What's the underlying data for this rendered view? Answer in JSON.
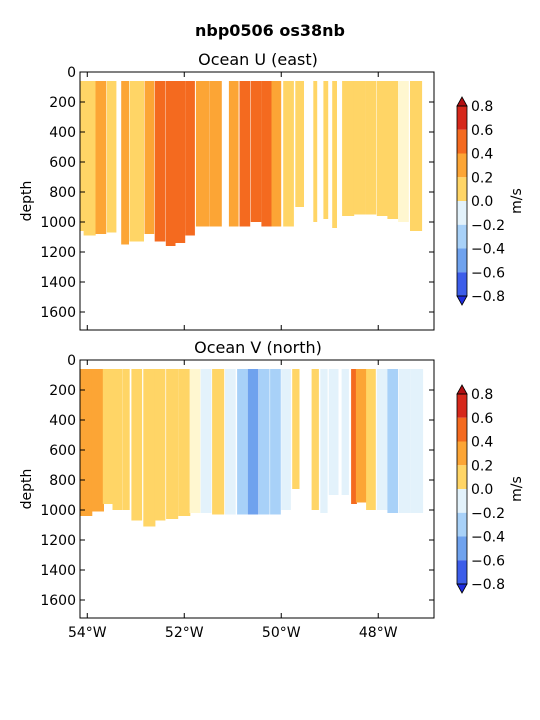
{
  "suptitle": "nbp0506 os38nb",
  "chart_data": [
    {
      "type": "heatmap",
      "title": "Ocean U (east)",
      "xlabel": "",
      "ylabel": "depth",
      "xlim": [
        -54.15,
        -46.85
      ],
      "ylim": [
        1720,
        0
      ],
      "yticks": [
        0,
        200,
        400,
        600,
        800,
        1000,
        1200,
        1400,
        1600
      ],
      "xticks": [
        -54,
        -52,
        -50,
        -48
      ],
      "xtick_labels": [
        "54°W",
        "52°W",
        "50°W",
        "48°W"
      ],
      "show_xtick_labels": false,
      "grid": false,
      "profiles": [
        {
          "lon": -54.1,
          "width": 0.12,
          "zmax": 1060,
          "value": 0.15
        },
        {
          "lon": -53.95,
          "width": 0.25,
          "zmax": 1090,
          "value": 0.1
        },
        {
          "lon": -53.72,
          "width": 0.22,
          "zmax": 1080,
          "value": 0.25
        },
        {
          "lon": -53.5,
          "width": 0.2,
          "zmax": 1070,
          "value": 0.1
        },
        {
          "lon": -53.22,
          "width": 0.16,
          "zmax": 1150,
          "value": 0.25
        },
        {
          "lon": -52.98,
          "width": 0.3,
          "zmax": 1130,
          "value": 0.2
        },
        {
          "lon": -52.72,
          "width": 0.2,
          "zmax": 1080,
          "value": 0.35
        },
        {
          "lon": -52.5,
          "width": 0.22,
          "zmax": 1130,
          "value": 0.45
        },
        {
          "lon": -52.28,
          "width": 0.2,
          "zmax": 1160,
          "value": 0.55
        },
        {
          "lon": -52.08,
          "width": 0.2,
          "zmax": 1140,
          "value": 0.6
        },
        {
          "lon": -51.88,
          "width": 0.2,
          "zmax": 1090,
          "value": 0.55
        },
        {
          "lon": -51.62,
          "width": 0.28,
          "zmax": 1030,
          "value": 0.35
        },
        {
          "lon": -51.35,
          "width": 0.25,
          "zmax": 1030,
          "value": 0.3
        },
        {
          "lon": -50.98,
          "width": 0.2,
          "zmax": 1030,
          "value": 0.4
        },
        {
          "lon": -50.75,
          "width": 0.22,
          "zmax": 1030,
          "value": 0.55
        },
        {
          "lon": -50.52,
          "width": 0.22,
          "zmax": 1000,
          "value": 0.6
        },
        {
          "lon": -50.3,
          "width": 0.22,
          "zmax": 1030,
          "value": 0.45
        },
        {
          "lon": -50.1,
          "width": 0.2,
          "zmax": 1030,
          "value": 0.25
        },
        {
          "lon": -49.85,
          "width": 0.22,
          "zmax": 1030,
          "value": 0.1
        },
        {
          "lon": -49.62,
          "width": 0.18,
          "zmax": 900,
          "value": 0.1
        },
        {
          "lon": -49.3,
          "width": 0.08,
          "zmax": 1000,
          "value": 0.05
        },
        {
          "lon": -49.08,
          "width": 0.1,
          "zmax": 980,
          "value": 0.05
        },
        {
          "lon": -48.9,
          "width": 0.1,
          "zmax": 1040,
          "value": 0.05
        },
        {
          "lon": -48.62,
          "width": 0.25,
          "zmax": 960,
          "value": 0.1
        },
        {
          "lon": -48.38,
          "width": 0.25,
          "zmax": 950,
          "value": 0.15
        },
        {
          "lon": -48.15,
          "width": 0.22,
          "zmax": 950,
          "value": 0.15
        },
        {
          "lon": -47.92,
          "width": 0.22,
          "zmax": 960,
          "value": 0.05
        },
        {
          "lon": -47.7,
          "width": 0.22,
          "zmax": 980,
          "value": 0.05
        },
        {
          "lon": -47.48,
          "width": 0.22,
          "zmax": 1000,
          "value": 0.0
        },
        {
          "lon": -47.22,
          "width": 0.25,
          "zmax": 1060,
          "value": 0.1
        }
      ],
      "colorbar": {
        "label": "m/s",
        "ticks": [
          0.8,
          0.6,
          0.4,
          0.2,
          0.0,
          -0.2,
          -0.4,
          -0.6,
          -0.8
        ],
        "tick_labels": [
          "0.8",
          "0.6",
          "0.4",
          "0.2",
          "0.0",
          "−0.2",
          "−0.4",
          "−0.6",
          "−0.8"
        ],
        "colors": [
          "#d6281b",
          "#f46a1f",
          "#fca535",
          "#ffd566",
          "#fff7d0",
          "#e3f2fb",
          "#a8d1f8",
          "#6fa2ee",
          "#3c5de9"
        ],
        "extend": "both"
      }
    },
    {
      "type": "heatmap",
      "title": "Ocean V (north)",
      "xlabel": "",
      "ylabel": "depth",
      "xlim": [
        -54.15,
        -46.85
      ],
      "ylim": [
        1720,
        0
      ],
      "yticks": [
        0,
        200,
        400,
        600,
        800,
        1000,
        1200,
        1400,
        1600
      ],
      "xticks": [
        -54,
        -52,
        -50,
        -48
      ],
      "xtick_labels": [
        "54°W",
        "52°W",
        "50°W",
        "48°W"
      ],
      "show_xtick_labels": true,
      "grid": false,
      "profiles": [
        {
          "lon": -54.02,
          "width": 0.25,
          "zmax": 1040,
          "value": 0.35
        },
        {
          "lon": -53.78,
          "width": 0.25,
          "zmax": 1010,
          "value": 0.25
        },
        {
          "lon": -53.58,
          "width": 0.2,
          "zmax": 960,
          "value": 0.2
        },
        {
          "lon": -53.38,
          "width": 0.2,
          "zmax": 1000,
          "value": 0.15
        },
        {
          "lon": -53.2,
          "width": 0.15,
          "zmax": 1000,
          "value": 0.05
        },
        {
          "lon": -52.98,
          "width": 0.22,
          "zmax": 1070,
          "value": 0.1
        },
        {
          "lon": -52.72,
          "width": 0.25,
          "zmax": 1110,
          "value": 0.05
        },
        {
          "lon": -52.5,
          "width": 0.22,
          "zmax": 1070,
          "value": 0.1
        },
        {
          "lon": -52.25,
          "width": 0.25,
          "zmax": 1060,
          "value": 0.1
        },
        {
          "lon": -52.0,
          "width": 0.25,
          "zmax": 1040,
          "value": 0.05
        },
        {
          "lon": -51.78,
          "width": 0.22,
          "zmax": 1020,
          "value": 0.0
        },
        {
          "lon": -51.55,
          "width": 0.22,
          "zmax": 1020,
          "value": -0.1
        },
        {
          "lon": -51.3,
          "width": 0.25,
          "zmax": 1030,
          "value": 0.05
        },
        {
          "lon": -51.05,
          "width": 0.22,
          "zmax": 1030,
          "value": -0.15
        },
        {
          "lon": -50.8,
          "width": 0.22,
          "zmax": 1030,
          "value": -0.35
        },
        {
          "lon": -50.58,
          "width": 0.22,
          "zmax": 1030,
          "value": -0.45
        },
        {
          "lon": -50.35,
          "width": 0.22,
          "zmax": 1030,
          "value": -0.35
        },
        {
          "lon": -50.12,
          "width": 0.22,
          "zmax": 1030,
          "value": -0.2
        },
        {
          "lon": -49.9,
          "width": 0.2,
          "zmax": 1000,
          "value": -0.1
        },
        {
          "lon": -49.7,
          "width": 0.15,
          "zmax": 860,
          "value": 0.05
        },
        {
          "lon": -49.3,
          "width": 0.15,
          "zmax": 1000,
          "value": 0.1
        },
        {
          "lon": -49.12,
          "width": 0.15,
          "zmax": 1020,
          "value": -0.1
        },
        {
          "lon": -48.92,
          "width": 0.2,
          "zmax": 900,
          "value": -0.05
        },
        {
          "lon": -48.68,
          "width": 0.15,
          "zmax": 900,
          "value": -0.15
        },
        {
          "lon": -48.5,
          "width": 0.12,
          "zmax": 960,
          "value": 0.55
        },
        {
          "lon": -48.35,
          "width": 0.22,
          "zmax": 950,
          "value": 0.25
        },
        {
          "lon": -48.15,
          "width": 0.2,
          "zmax": 1000,
          "value": 0.05
        },
        {
          "lon": -47.92,
          "width": 0.22,
          "zmax": 1000,
          "value": -0.15
        },
        {
          "lon": -47.7,
          "width": 0.22,
          "zmax": 1020,
          "value": -0.2
        },
        {
          "lon": -47.45,
          "width": 0.25,
          "zmax": 1020,
          "value": -0.1
        },
        {
          "lon": -47.2,
          "width": 0.25,
          "zmax": 1020,
          "value": -0.1
        }
      ],
      "colorbar": {
        "label": "m/s",
        "ticks": [
          0.8,
          0.6,
          0.4,
          0.2,
          0.0,
          -0.2,
          -0.4,
          -0.6,
          -0.8
        ],
        "tick_labels": [
          "0.8",
          "0.6",
          "0.4",
          "0.2",
          "0.0",
          "−0.2",
          "−0.4",
          "−0.6",
          "−0.8"
        ],
        "colors": [
          "#d6281b",
          "#f46a1f",
          "#fca535",
          "#ffd566",
          "#fff7d0",
          "#e3f2fb",
          "#a8d1f8",
          "#6fa2ee",
          "#3c5de9"
        ],
        "extend": "both"
      }
    }
  ]
}
